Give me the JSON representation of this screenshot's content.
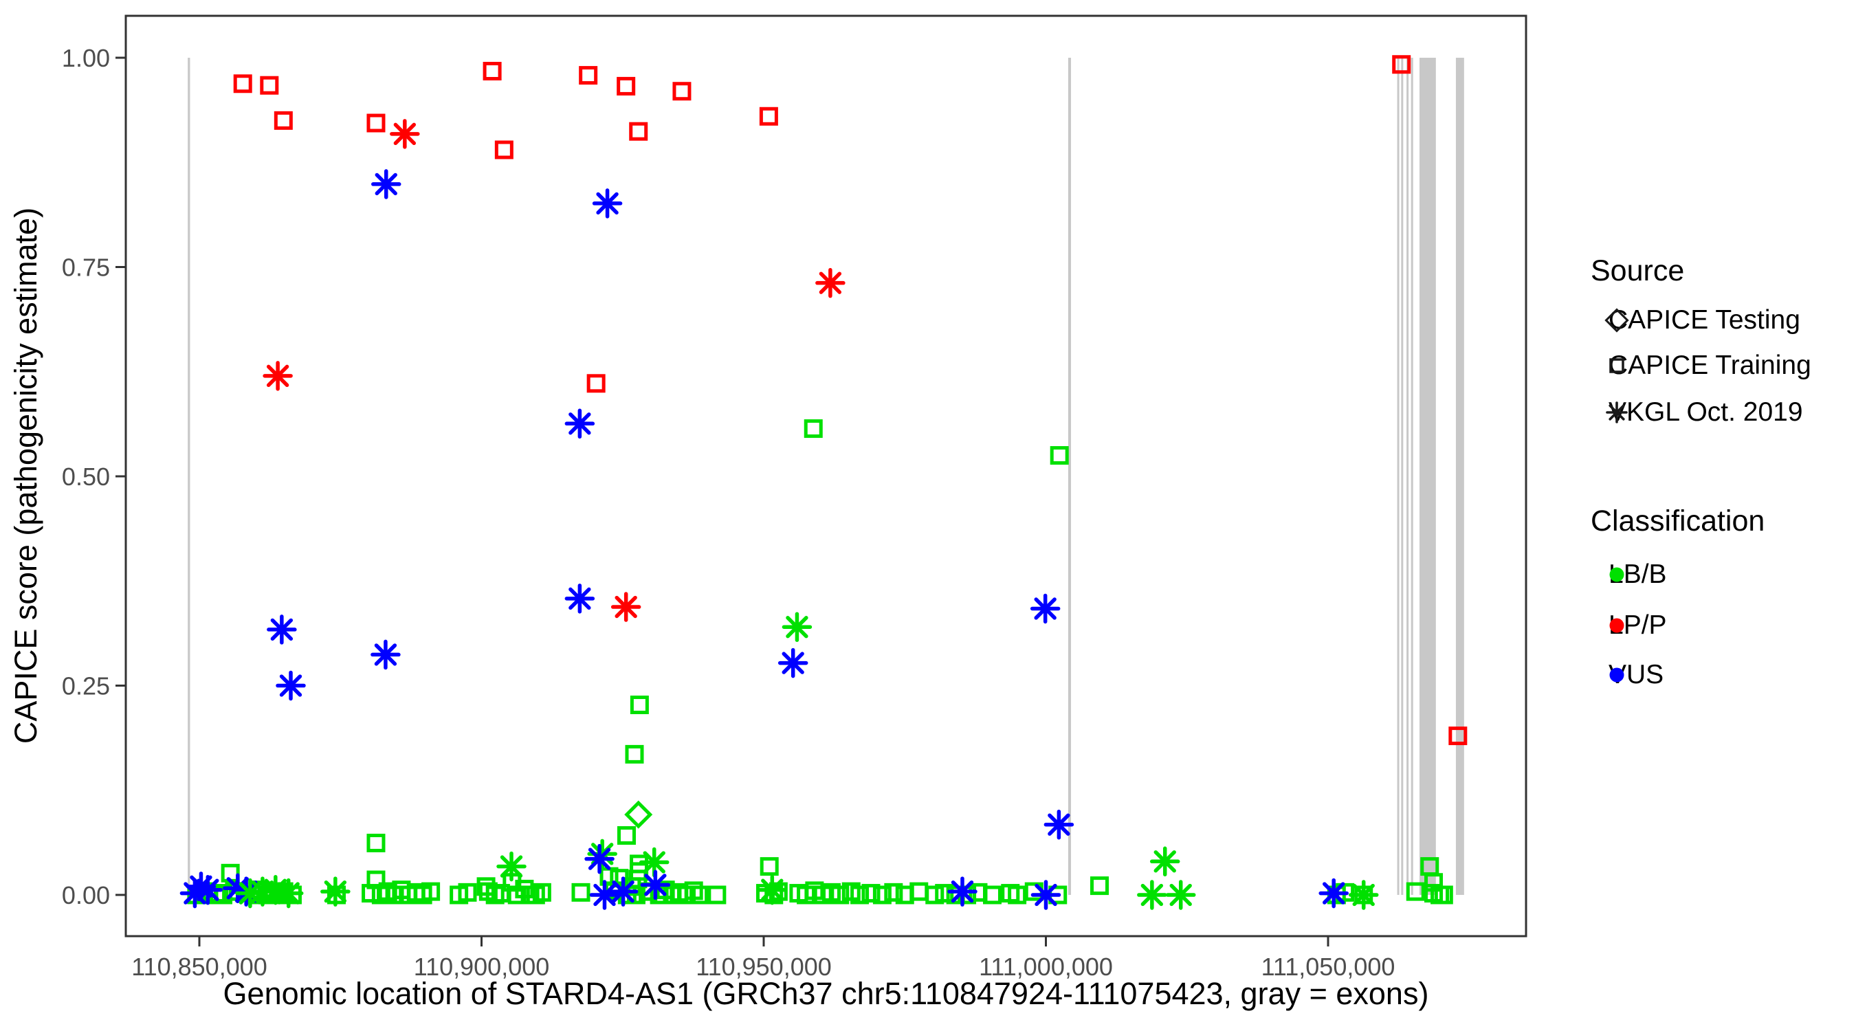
{
  "chart_data": {
    "type": "scatter",
    "title": "",
    "xlabel": "Genomic location of STARD4-AS1 (GRCh37 chr5:110847924-111075423, gray = exons)",
    "ylabel": "CAPICE score (pathogenicity estimate)",
    "xlim": [
      110836970,
      111085080
    ],
    "ylim": [
      -0.049,
      1.05
    ],
    "grid": false,
    "legend_position": "right",
    "x_ticks": [
      {
        "value": 110850000,
        "label": "110,850,000"
      },
      {
        "value": 110900000,
        "label": "110,900,000"
      },
      {
        "value": 110950000,
        "label": "110,950,000"
      },
      {
        "value": 111000000,
        "label": "111,000,000"
      },
      {
        "value": 111050000,
        "label": "111,050,000"
      }
    ],
    "y_ticks": [
      {
        "value": 0.0,
        "label": "0.00"
      },
      {
        "value": 0.25,
        "label": "0.25"
      },
      {
        "value": 0.5,
        "label": "0.50"
      },
      {
        "value": 0.75,
        "label": "0.75"
      },
      {
        "value": 1.0,
        "label": "1.00"
      }
    ],
    "legend": {
      "source": {
        "title": "Source",
        "items": [
          {
            "label": "CAPICE Testing",
            "shape": "diamond"
          },
          {
            "label": "CAPICE Training",
            "shape": "square"
          },
          {
            "label": "VKGL Oct. 2019",
            "shape": "asterisk"
          }
        ]
      },
      "classification": {
        "title": "Classification",
        "items": [
          {
            "label": "LB/B",
            "color": "#00e000"
          },
          {
            "label": "LP/P",
            "color": "#ff0000"
          },
          {
            "label": "VUS",
            "color": "#0000ff"
          }
        ]
      }
    },
    "exon_color": "#c8c8c8",
    "exons_bp": [
      [
        110847950,
        110848350
      ],
      [
        111003950,
        111004450
      ],
      [
        111062250,
        111062600
      ],
      [
        111062950,
        111063200
      ],
      [
        111063900,
        111064150
      ],
      [
        111064700,
        111064950
      ],
      [
        111066200,
        111069100
      ],
      [
        111072650,
        111074100
      ]
    ],
    "sources": [
      "CAPICE Testing",
      "CAPICE Training",
      "VKGL Oct. 2019"
    ],
    "source_shapes": [
      "diamond",
      "square",
      "asterisk"
    ],
    "classifications": [
      "LB/B",
      "LP/P",
      "VUS"
    ],
    "class_colors": [
      "#00e000",
      "#ff0000",
      "#0000ff"
    ],
    "point_format": [
      "genomic_position_bp",
      "capice_score",
      "source_index",
      "classification_index"
    ],
    "points": [
      [
        110857700,
        0.969,
        1,
        1
      ],
      [
        110862400,
        0.967,
        1,
        1
      ],
      [
        110864900,
        0.925,
        1,
        1
      ],
      [
        110881300,
        0.922,
        1,
        1
      ],
      [
        110901900,
        0.984,
        1,
        1
      ],
      [
        110918900,
        0.979,
        1,
        1
      ],
      [
        110925600,
        0.966,
        1,
        1
      ],
      [
        110935500,
        0.96,
        1,
        1
      ],
      [
        110950900,
        0.93,
        1,
        1
      ],
      [
        110927800,
        0.912,
        1,
        1
      ],
      [
        110904000,
        0.89,
        1,
        1
      ],
      [
        110920300,
        0.611,
        1,
        1
      ],
      [
        111063000,
        0.992,
        1,
        1
      ],
      [
        111073000,
        0.19,
        1,
        1
      ],
      [
        110886400,
        0.909,
        2,
        1
      ],
      [
        110863900,
        0.62,
        2,
        1
      ],
      [
        110961800,
        0.731,
        2,
        1
      ],
      [
        110925600,
        0.344,
        2,
        1
      ],
      [
        110883100,
        0.849,
        2,
        2
      ],
      [
        110922300,
        0.826,
        2,
        2
      ],
      [
        110917400,
        0.563,
        2,
        2
      ],
      [
        110917400,
        0.354,
        2,
        2
      ],
      [
        110864600,
        0.317,
        2,
        2
      ],
      [
        110883000,
        0.287,
        2,
        2
      ],
      [
        110866200,
        0.25,
        2,
        2
      ],
      [
        110999900,
        0.342,
        2,
        2
      ],
      [
        111002300,
        0.084,
        2,
        2
      ],
      [
        110955200,
        0.277,
        2,
        2
      ],
      [
        110958800,
        0.557,
        1,
        0
      ],
      [
        111002400,
        0.525,
        1,
        0
      ],
      [
        110928000,
        0.227,
        1,
        0
      ],
      [
        110927100,
        0.168,
        1,
        0
      ],
      [
        110925700,
        0.071,
        1,
        0
      ],
      [
        110881300,
        0.062,
        1,
        0
      ],
      [
        110927800,
        0.096,
        0,
        0
      ],
      [
        110955900,
        0.32,
        2,
        0
      ],
      [
        111021100,
        0.04,
        2,
        0
      ],
      [
        110921400,
        0.049,
        2,
        0
      ],
      [
        110930600,
        0.039,
        2,
        0
      ],
      [
        110905300,
        0.034,
        2,
        0
      ],
      [
        110849200,
        0.002,
        2,
        2
      ],
      [
        110850300,
        0.01,
        2,
        2
      ],
      [
        110849500,
        0.0,
        1,
        0
      ],
      [
        110850800,
        0.004,
        1,
        0
      ],
      [
        110851700,
        0.0,
        1,
        0
      ],
      [
        110851500,
        0.006,
        2,
        2
      ],
      [
        110853000,
        0.002,
        1,
        0
      ],
      [
        110854200,
        0.0,
        1,
        0
      ],
      [
        110855500,
        0.026,
        1,
        0
      ],
      [
        110856200,
        0.004,
        1,
        0
      ],
      [
        110856800,
        0.008,
        2,
        2
      ],
      [
        110858300,
        0.004,
        2,
        2
      ],
      [
        110859000,
        0.002,
        2,
        0
      ],
      [
        110859800,
        0.0,
        1,
        0
      ],
      [
        110860500,
        0.006,
        1,
        0
      ],
      [
        110861200,
        0.004,
        2,
        0
      ],
      [
        110862000,
        0.0,
        1,
        0
      ],
      [
        110862800,
        0.003,
        1,
        0
      ],
      [
        110863500,
        0.006,
        2,
        0
      ],
      [
        110864300,
        0.0,
        1,
        0
      ],
      [
        110865000,
        0.004,
        1,
        0
      ],
      [
        110865800,
        0.002,
        2,
        0
      ],
      [
        110866500,
        0.0,
        1,
        0
      ],
      [
        110874100,
        0.004,
        2,
        0
      ],
      [
        110874300,
        0.0,
        1,
        0
      ],
      [
        110880400,
        0.002,
        1,
        0
      ],
      [
        110881300,
        0.018,
        1,
        0
      ],
      [
        110882200,
        0.0,
        1,
        0
      ],
      [
        110883400,
        0.004,
        1,
        0
      ],
      [
        110884600,
        0.0,
        1,
        0
      ],
      [
        110885800,
        0.006,
        1,
        0
      ],
      [
        110887000,
        0.0,
        1,
        0
      ],
      [
        110888400,
        0.003,
        1,
        0
      ],
      [
        110889600,
        0.0,
        1,
        0
      ],
      [
        110891000,
        0.004,
        1,
        0
      ],
      [
        110896000,
        0.0,
        1,
        0
      ],
      [
        110897500,
        0.003,
        1,
        0
      ],
      [
        110900800,
        0.01,
        1,
        0
      ],
      [
        110901200,
        0.004,
        1,
        0
      ],
      [
        110902400,
        0.0,
        1,
        0
      ],
      [
        110903400,
        0.002,
        1,
        0
      ],
      [
        110905400,
        0.015,
        1,
        0
      ],
      [
        110906300,
        0.0,
        1,
        0
      ],
      [
        110907600,
        0.007,
        1,
        0
      ],
      [
        110908600,
        0.0,
        1,
        0
      ],
      [
        110909600,
        0.0,
        1,
        0
      ],
      [
        110910700,
        0.003,
        1,
        0
      ],
      [
        110917600,
        0.003,
        1,
        0
      ],
      [
        110920900,
        0.043,
        2,
        2
      ],
      [
        110921800,
        0.0,
        2,
        2
      ],
      [
        110922600,
        0.022,
        1,
        0
      ],
      [
        110923500,
        0.005,
        1,
        0
      ],
      [
        110924400,
        0.02,
        1,
        0
      ],
      [
        110925100,
        0.004,
        2,
        2
      ],
      [
        110925800,
        0.0,
        1,
        0
      ],
      [
        110926600,
        0.01,
        1,
        0
      ],
      [
        110927400,
        0.0,
        1,
        0
      ],
      [
        110927900,
        0.037,
        1,
        0
      ],
      [
        110927900,
        0.028,
        1,
        0
      ],
      [
        110927700,
        0.019,
        1,
        0
      ],
      [
        110930800,
        0.012,
        2,
        2
      ],
      [
        110929500,
        0.004,
        1,
        0
      ],
      [
        110931500,
        0.0,
        1,
        0
      ],
      [
        110932600,
        0.006,
        1,
        0
      ],
      [
        110933800,
        0.0,
        1,
        0
      ],
      [
        110935000,
        0.003,
        1,
        0
      ],
      [
        110936300,
        0.0,
        1,
        0
      ],
      [
        110937600,
        0.005,
        1,
        0
      ],
      [
        110938500,
        0.0,
        1,
        0
      ],
      [
        110941700,
        0.0,
        1,
        0
      ],
      [
        110950300,
        0.002,
        1,
        0
      ],
      [
        110951000,
        0.034,
        1,
        0
      ],
      [
        110951500,
        0.006,
        2,
        0
      ],
      [
        110951800,
        0.0,
        1,
        0
      ],
      [
        110952600,
        0.004,
        1,
        0
      ],
      [
        110956200,
        0.002,
        1,
        0
      ],
      [
        110957500,
        0.0,
        1,
        0
      ],
      [
        110959000,
        0.005,
        1,
        0
      ],
      [
        110960500,
        0.0,
        1,
        0
      ],
      [
        110962000,
        0.003,
        1,
        0
      ],
      [
        110963500,
        0.0,
        1,
        0
      ],
      [
        110965500,
        0.004,
        1,
        0
      ],
      [
        110967000,
        0.0,
        1,
        0
      ],
      [
        110969000,
        0.002,
        1,
        0
      ],
      [
        110971000,
        0.0,
        1,
        0
      ],
      [
        110973000,
        0.003,
        1,
        0
      ],
      [
        110975000,
        0.0,
        1,
        0
      ],
      [
        110977500,
        0.004,
        1,
        0
      ],
      [
        110980300,
        0.0,
        1,
        0
      ],
      [
        110982000,
        0.002,
        1,
        0
      ],
      [
        110984000,
        0.0,
        1,
        0
      ],
      [
        110985200,
        0.004,
        2,
        2
      ],
      [
        110986000,
        0.0,
        1,
        0
      ],
      [
        110988000,
        0.003,
        1,
        0
      ],
      [
        110990500,
        0.0,
        1,
        0
      ],
      [
        110993700,
        0.002,
        1,
        0
      ],
      [
        110994900,
        0.0,
        1,
        0
      ],
      [
        110997900,
        0.004,
        1,
        0
      ],
      [
        111000000,
        0.0,
        2,
        2
      ],
      [
        111002100,
        0.0,
        1,
        0
      ],
      [
        111009500,
        0.011,
        1,
        0
      ],
      [
        111018800,
        0.0,
        2,
        0
      ],
      [
        111023900,
        0.0,
        2,
        0
      ],
      [
        111051000,
        0.002,
        2,
        2
      ],
      [
        111051500,
        0.0,
        1,
        0
      ],
      [
        111053000,
        0.003,
        1,
        0
      ],
      [
        111056300,
        0.0,
        2,
        0
      ],
      [
        111056300,
        0.0,
        1,
        0
      ],
      [
        111065500,
        0.004,
        1,
        0
      ],
      [
        111068000,
        0.034,
        1,
        0
      ],
      [
        111068700,
        0.015,
        1,
        0
      ],
      [
        111068700,
        0.002,
        1,
        0
      ],
      [
        111069800,
        0.0,
        1,
        0
      ],
      [
        111070500,
        0.0,
        1,
        0
      ]
    ]
  }
}
